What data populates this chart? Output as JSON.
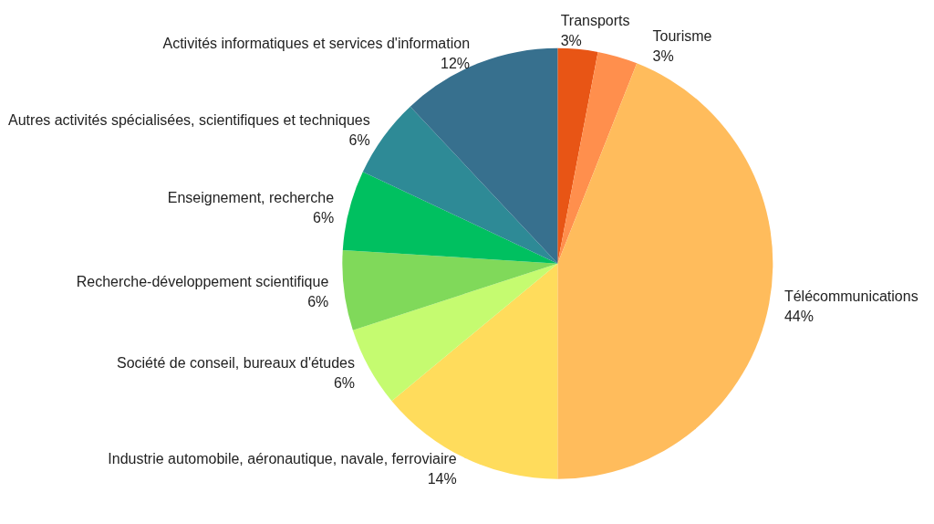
{
  "chart_data": {
    "type": "pie",
    "categories": [
      "Transports",
      "Tourisme",
      "Télécommunications",
      "Industrie automobile, aéronautique, navale, ferroviaire",
      "Société de conseil, bureaux d'études",
      "Recherche-développement scientifique",
      "Enseignement, recherche",
      "Autres activités spécialisées, scientifiques et techniques",
      "Activités informatiques et services d'information"
    ],
    "values": [
      3,
      3,
      44,
      14,
      6,
      6,
      6,
      6,
      12
    ],
    "value_labels": [
      "3%",
      "3%",
      "44%",
      "14%",
      "6%",
      "6%",
      "6%",
      "6%",
      "12%"
    ],
    "colors": [
      "#e85515",
      "#ff8f4d",
      "#ffbc5c",
      "#ffdc5c",
      "#c5fb70",
      "#80d95a",
      "#00c060",
      "#2e8a96",
      "#37708e"
    ],
    "legend": false
  }
}
